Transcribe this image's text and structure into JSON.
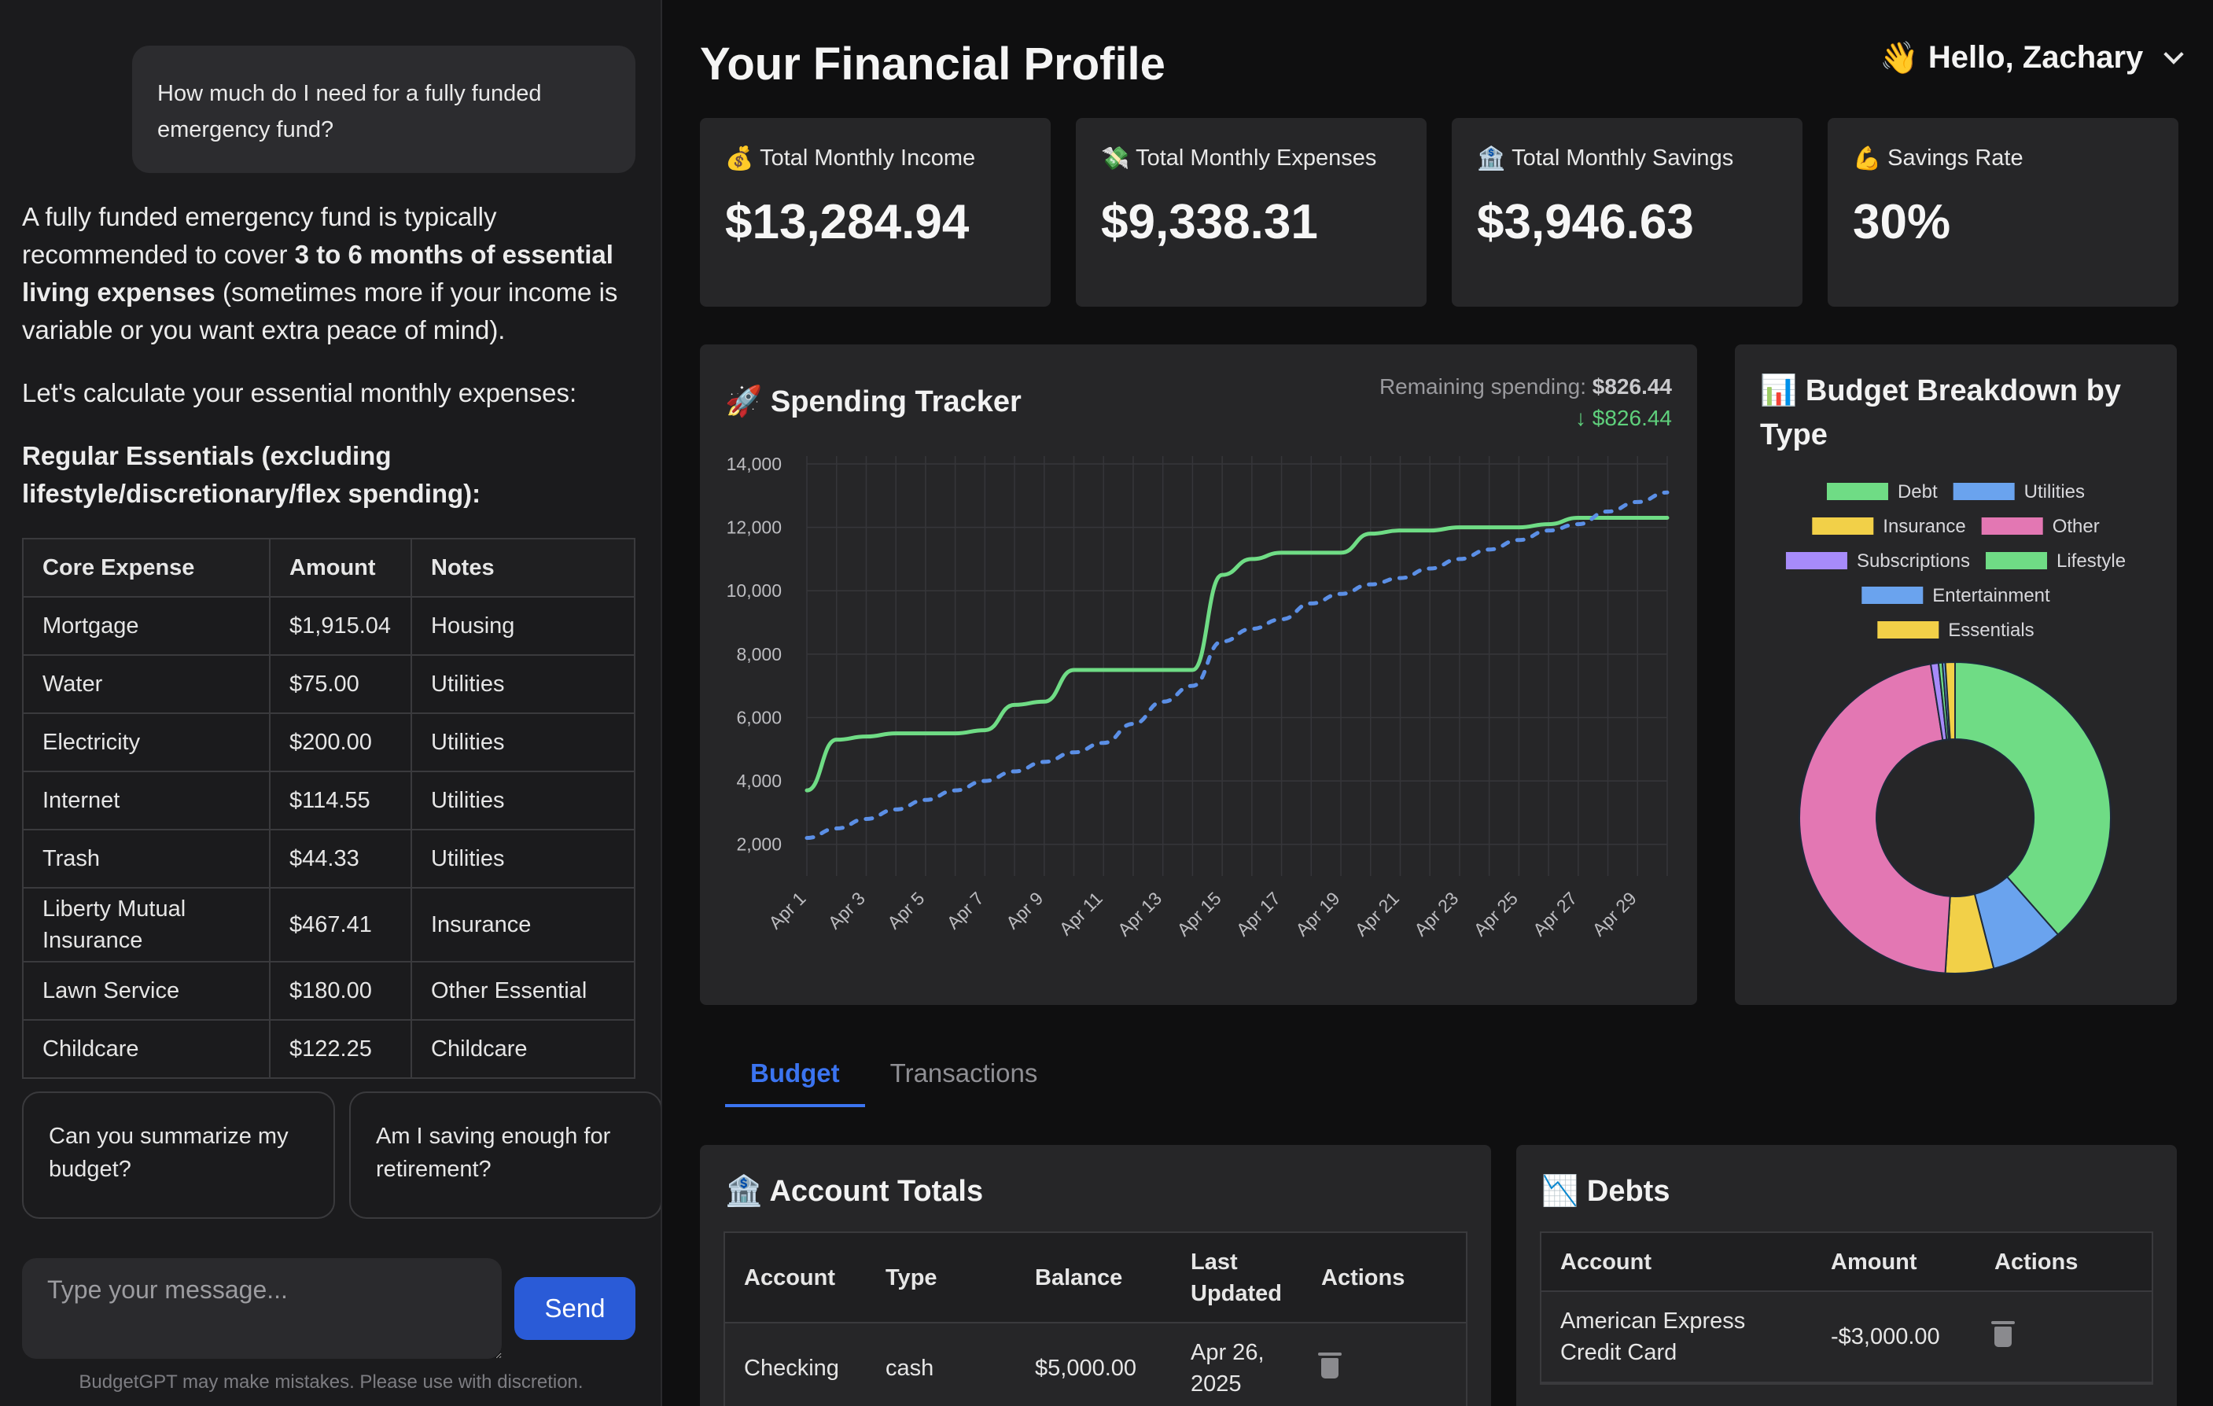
{
  "chat": {
    "user_message": "How much do I need for a fully funded emergency fund?",
    "answer_p1_a": "A fully funded emergency fund is typically recommended to cover ",
    "answer_p1_b": "3 to 6 months of essential living expenses",
    "answer_p1_c": " (sometimes more if your income is variable or you want extra peace of mind).",
    "answer_p2": "Let's calculate your essential monthly expenses:",
    "answer_p3": "Regular Essentials (excluding lifestyle/discretionary/flex spending):",
    "table_headers": [
      "Core Expense",
      "Amount",
      "Notes"
    ],
    "table_rows": [
      [
        "Mortgage",
        "$1,915.04",
        "Housing"
      ],
      [
        "Water",
        "$75.00",
        "Utilities"
      ],
      [
        "Electricity",
        "$200.00",
        "Utilities"
      ],
      [
        "Internet",
        "$114.55",
        "Utilities"
      ],
      [
        "Trash",
        "$44.33",
        "Utilities"
      ],
      [
        "Liberty Mutual Insurance",
        "$467.41",
        "Insurance"
      ],
      [
        "Lawn Service",
        "$180.00",
        "Other Essential"
      ],
      [
        "Childcare",
        "$122.25",
        "Childcare"
      ]
    ],
    "suggestions": [
      "Can you summarize my budget?",
      "Am I saving enough for retirement?"
    ],
    "input_placeholder": "Type your message...",
    "send_label": "Send",
    "disclaimer": "BudgetGPT may make mistakes. Please use with discretion."
  },
  "header": {
    "title": "Your Financial Profile",
    "greeting": "Hello, Zachary",
    "greeting_emoji": "👋"
  },
  "stats": [
    {
      "emoji": "💰",
      "label": "Total Monthly Income",
      "value": "$13,284.94"
    },
    {
      "emoji": "💸",
      "label": "Total Monthly Expenses",
      "value": "$9,338.31"
    },
    {
      "emoji": "🏦",
      "label": "Total Monthly Savings",
      "value": "$3,946.63"
    },
    {
      "emoji": "💪",
      "label": "Savings Rate",
      "value": "30%"
    }
  ],
  "spending": {
    "emoji": "🚀",
    "title": "Spending Tracker",
    "remaining_label": "Remaining spending:",
    "remaining_value": "$826.44",
    "remaining_delta": "↓ $826.44"
  },
  "budget": {
    "emoji": "📊",
    "title": "Budget Breakdown by Type"
  },
  "tabs": [
    "Budget",
    "Transactions"
  ],
  "accounts": {
    "emoji": "🏦",
    "title": "Account Totals",
    "headers": [
      "Account",
      "Type",
      "Balance",
      "Last Updated",
      "Actions"
    ],
    "rows": [
      [
        "Checking",
        "cash",
        "$5,000.00",
        "Apr 26, 2025"
      ]
    ]
  },
  "debts": {
    "emoji": "📉",
    "title": "Debts",
    "headers": [
      "Account",
      "Amount",
      "Actions"
    ],
    "rows": [
      [
        "American Express Credit Card",
        "-$3,000.00"
      ]
    ]
  },
  "colors": {
    "actual_line": "#6fdc85",
    "projected_line": "#5b8fe6",
    "accent": "#2a5bd7"
  },
  "chart_data": [
    {
      "type": "line",
      "title": "Spending Tracker",
      "x": [
        "Apr 1",
        "Apr 2",
        "Apr 3",
        "Apr 4",
        "Apr 5",
        "Apr 6",
        "Apr 7",
        "Apr 8",
        "Apr 9",
        "Apr 10",
        "Apr 11",
        "Apr 12",
        "Apr 13",
        "Apr 14",
        "Apr 15",
        "Apr 16",
        "Apr 17",
        "Apr 18",
        "Apr 19",
        "Apr 20",
        "Apr 21",
        "Apr 22",
        "Apr 23",
        "Apr 24",
        "Apr 25",
        "Apr 26",
        "Apr 27",
        "Apr 28",
        "Apr 29",
        "Apr 30"
      ],
      "x_tick_labels": [
        "Apr 1",
        "Apr 3",
        "Apr 5",
        "Apr 7",
        "Apr 9",
        "Apr 11",
        "Apr 13",
        "Apr 15",
        "Apr 17",
        "Apr 19",
        "Apr 21",
        "Apr 23",
        "Apr 25",
        "Apr 27",
        "Apr 29"
      ],
      "y_ticks": [
        2000,
        4000,
        6000,
        8000,
        10000,
        12000,
        14000
      ],
      "ylim": [
        1000,
        14000
      ],
      "grid": true,
      "series": [
        {
          "style": "solid",
          "color": "#6fdc85",
          "values": [
            3700,
            5300,
            5400,
            5500,
            5500,
            5500,
            5600,
            6400,
            6500,
            7500,
            7500,
            7500,
            7500,
            7500,
            10500,
            11000,
            11200,
            11200,
            11200,
            11800,
            11900,
            11900,
            12000,
            12000,
            12000,
            12100,
            12300,
            12300,
            12300,
            12300
          ]
        },
        {
          "style": "dashed",
          "color": "#5b8fe6",
          "values": [
            2200,
            2500,
            2800,
            3100,
            3400,
            3700,
            4000,
            4300,
            4600,
            4900,
            5200,
            5800,
            6500,
            7000,
            8400,
            8800,
            9100,
            9600,
            9900,
            10200,
            10400,
            10700,
            11000,
            11300,
            11600,
            11900,
            12100,
            12500,
            12800,
            13100
          ]
        }
      ]
    },
    {
      "type": "pie",
      "title": "Budget Breakdown by Type",
      "donut": true,
      "legend_placement": "top",
      "labels": [
        "Debt",
        "Utilities",
        "Insurance",
        "Other",
        "Subscriptions",
        "Lifestyle",
        "Entertainment",
        "Essentials"
      ],
      "colors": [
        "#6fdc85",
        "#6aa3ee",
        "#f2d048",
        "#e377b3",
        "#a78bfa",
        "#6fdc85",
        "#6aa3ee",
        "#f2d048"
      ],
      "values": [
        38.5,
        7.5,
        5.0,
        46.5,
        0.8,
        0.4,
        0.3,
        1.0
      ]
    }
  ]
}
